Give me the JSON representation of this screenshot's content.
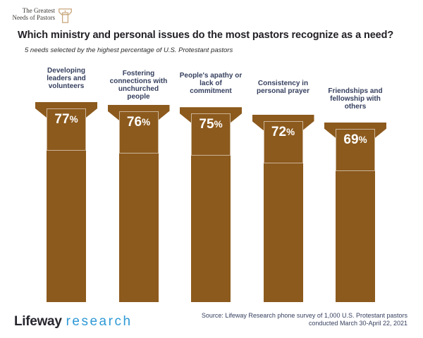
{
  "header": {
    "logo_line1": "The Greatest",
    "logo_line2": "Needs of Pastors",
    "title": "Which ministry and personal issues do the most pastors recognize as a need?",
    "subtitle": "5 needs selected by the highest percentage of U.S. Protestant pastors"
  },
  "chart_data": {
    "type": "bar",
    "orientation": "vertical",
    "title": "Which ministry and personal issues do the most pastors recognize as a need?",
    "subtitle": "5 needs selected by the highest percentage of U.S. Protestant pastors",
    "categories": [
      "Developing\nleaders and\nvolunteers",
      "Fostering\nconnections with\nunchurched\npeople",
      "People's apathy or\nlack of\ncommitment",
      "Consistency in\npersonal prayer",
      "Friendships and\nfellowship with\nothers"
    ],
    "values": [
      77,
      76,
      75,
      72,
      69
    ],
    "value_labels": [
      "77%",
      "76%",
      "75%",
      "72%",
      "69%"
    ],
    "unit": "%",
    "ylim": [
      0,
      100
    ],
    "bar_style": "podium-pulpit-shape",
    "bar_color": "#8C5A1D",
    "value_label_color": "#FFFFFF",
    "category_label_color": "#353F5E",
    "legend": "none",
    "grid": "off",
    "source": "Source: Lifeway Research phone survey of 1,000 U.S. Protestant pastors conducted March 30-April 22, 2021"
  },
  "footer": {
    "logo_primary": "Lifeway",
    "logo_secondary": "research",
    "source_line1": "Source: Lifeway Research phone survey of 1,000 U.S. Protestant pastors",
    "source_line2": "conducted March 30-April 22, 2021"
  },
  "colors": {
    "pillar_brown": "#8C5A1D",
    "label_navy": "#353F5E",
    "title_black": "#232026",
    "research_blue": "#2F99D6",
    "lifeway_dark": "#26262E",
    "logo_tan": "#C9A87F"
  }
}
